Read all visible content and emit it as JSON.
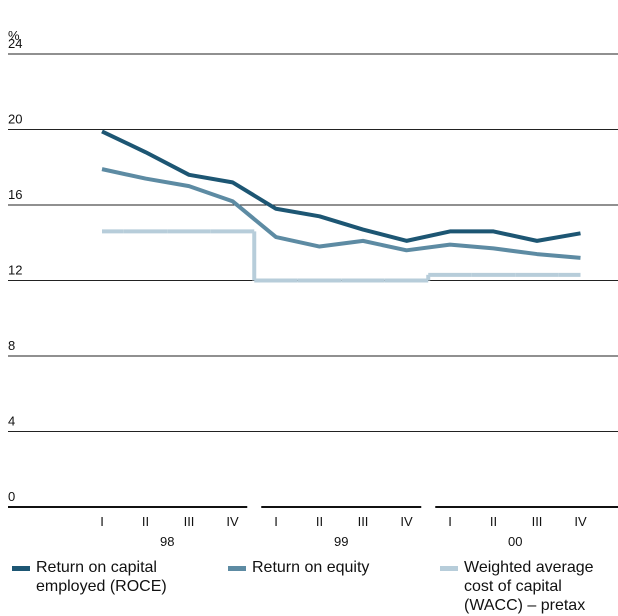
{
  "chart_data": {
    "type": "line",
    "y_unit": "%",
    "categories": [
      "I",
      "II",
      "III",
      "IV",
      "I",
      "II",
      "III",
      "IV",
      "I",
      "II",
      "III",
      "IV"
    ],
    "x_groups": [
      "98",
      "99",
      "00"
    ],
    "ylim": [
      0,
      24
    ],
    "yticks": [
      0,
      4,
      8,
      12,
      16,
      20,
      24
    ],
    "grid": true,
    "legend": "bottom",
    "series": [
      {
        "name": "Return on capital employed (ROCE)",
        "color": "#1d5673",
        "style": "line",
        "values": [
          19.9,
          18.8,
          17.6,
          17.2,
          15.8,
          15.4,
          14.7,
          14.1,
          14.6,
          14.6,
          14.1,
          14.5
        ]
      },
      {
        "name": "Return on equity",
        "color": "#5d8ba3",
        "style": "line",
        "values": [
          17.9,
          17.4,
          17.0,
          16.2,
          14.3,
          13.8,
          14.1,
          13.6,
          13.9,
          13.7,
          13.4,
          13.2
        ]
      },
      {
        "name": "Weighted average cost of capital (WACC) – pretax",
        "color": "#b7cdda",
        "style": "step",
        "values": [
          14.6,
          14.6,
          14.6,
          14.6,
          12.0,
          12.0,
          12.0,
          12.0,
          12.3,
          12.3,
          12.3,
          12.3
        ]
      }
    ]
  }
}
